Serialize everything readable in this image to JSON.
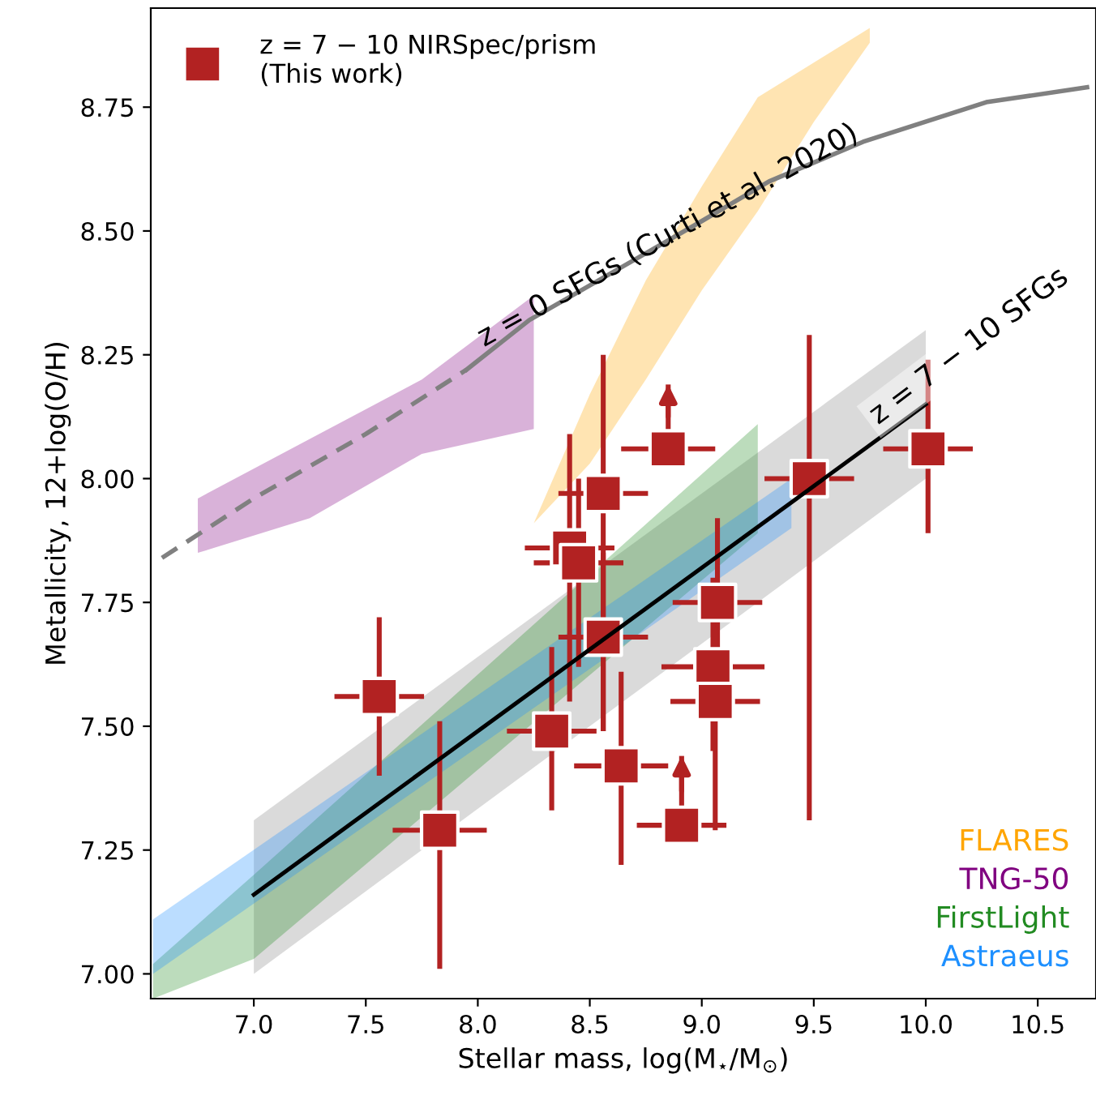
{
  "chart_data": {
    "type": "scatter",
    "xlabel": "Stellar mass, log(M$_{⋆}$/M$_{⊙}$)",
    "ylabel": "Metallicity, 12+log(O/H)",
    "xlim": [
      6.54,
      10.76
    ],
    "ylim": [
      6.95,
      8.95
    ],
    "xticks": [
      {
        "value": 7,
        "label": "7.0"
      },
      {
        "value": 7.5,
        "label": "7.5"
      },
      {
        "value": 8,
        "label": "8.0"
      },
      {
        "value": 8.5,
        "label": "8.5"
      },
      {
        "value": 9,
        "label": "9.0"
      },
      {
        "value": 9.5,
        "label": "9.5"
      },
      {
        "value": 10,
        "label": "10.0"
      },
      {
        "value": 10.5,
        "label": "10.5"
      }
    ],
    "yticks": [
      {
        "value": 7,
        "label": "7.00"
      },
      {
        "value": 7.25,
        "label": "7.25"
      },
      {
        "value": 7.5,
        "label": "7.50"
      },
      {
        "value": 7.75,
        "label": "7.75"
      },
      {
        "value": 8,
        "label": "8.00"
      },
      {
        "value": 8.25,
        "label": "8.25"
      },
      {
        "value": 8.5,
        "label": "8.50"
      },
      {
        "value": 8.75,
        "label": "8.75"
      }
    ],
    "grid": false,
    "legend": "top left",
    "annotations": [
      {
        "text": "z = 0 SFGs (Curti et al. 2020)",
        "x": 8.85,
        "y": 8.49
      }
    ],
    "series": [
      {
        "type": "line",
        "name": "z = 7 − 10 SFGs",
        "color": "#000000",
        "line_style": "solid",
        "x": [
          7.0,
          10.0
        ],
        "values": [
          7.16,
          8.15
        ],
        "lower": [
          7.0,
          8.0
        ],
        "upper": [
          7.31,
          8.3
        ]
      },
      {
        "type": "line",
        "color": "#808080",
        "line_style": "dashed",
        "x": [
          6.59,
          7.0,
          7.5,
          7.95
        ],
        "values": [
          7.84,
          7.96,
          8.09,
          8.22
        ]
      },
      {
        "type": "line",
        "color": "#808080",
        "line_style": "solid",
        "x": [
          7.95,
          8.23,
          8.5,
          9.0,
          9.3,
          9.72,
          10.27,
          10.72
        ],
        "values": [
          8.22,
          8.32,
          8.39,
          8.52,
          8.6,
          8.68,
          8.76,
          8.79
        ]
      },
      {
        "type": "line",
        "name": "FLARES",
        "color": "#ffa500",
        "x": [
          8.25,
          8.5,
          8.75,
          9.0,
          9.25,
          9.5,
          9.75
        ],
        "values": [
          null,
          null,
          null,
          null,
          null,
          null,
          null
        ],
        "lower": [
          7.91,
          8.03,
          8.2,
          8.38,
          8.54,
          8.72,
          8.88
        ],
        "upper": [
          7.91,
          8.17,
          8.4,
          8.59,
          8.77,
          8.84,
          8.91
        ]
      },
      {
        "type": "line",
        "name": "TNG-50",
        "color": "#800080",
        "x": [
          6.75,
          7.25,
          7.75,
          8.25
        ],
        "values": [
          null,
          null,
          null,
          null
        ],
        "lower": [
          7.85,
          7.92,
          8.05,
          8.1
        ],
        "upper": [
          7.96,
          8.08,
          8.2,
          8.37
        ]
      },
      {
        "type": "line",
        "name": "FirstLight",
        "color": "#228b22",
        "x": [
          6.55,
          7.0,
          9.25
        ],
        "values": [
          null,
          null,
          null
        ],
        "lower": [
          6.95,
          7.03,
          7.89
        ],
        "upper": [
          7.02,
          7.2,
          8.11
        ]
      },
      {
        "type": "line",
        "name": "Astraeus",
        "color": "#1e90ff",
        "x": [
          6.55,
          9.4
        ],
        "values": [
          null,
          null
        ],
        "lower": [
          7.0,
          7.9
        ],
        "upper": [
          7.11,
          8.0
        ]
      },
      {
        "name": "z = 7 − 10 NIRSpec/prism\n(This work)",
        "color": "#b22222",
        "marker": "square",
        "x": [
          7.56,
          7.83,
          8.33,
          8.41,
          8.45,
          8.56,
          8.56,
          8.64,
          8.85,
          9.07,
          9.05,
          9.06,
          8.91,
          9.48,
          10.01
        ],
        "values": [
          7.56,
          7.29,
          7.49,
          7.86,
          7.83,
          7.97,
          7.68,
          7.42,
          8.06,
          7.75,
          7.62,
          7.55,
          7.3,
          8.0,
          8.06
        ],
        "errors": [
          [
            7.4,
            7.72
          ],
          [
            7.01,
            7.51
          ],
          [
            7.33,
            7.66
          ],
          [
            7.55,
            8.09
          ],
          [
            7.62,
            8.0
          ],
          [
            7.49,
            8.25
          ],
          [
            7.49,
            7.85
          ],
          [
            7.22,
            7.61
          ],
          [
            8.06,
            8.19
          ],
          [
            7.59,
            7.92
          ],
          [
            7.45,
            7.8
          ],
          [
            7.29,
            7.7
          ],
          [
            7.3,
            7.44
          ],
          [
            7.31,
            8.29
          ],
          [
            7.89,
            8.24
          ]
        ],
        "xerrors": [
          0.2,
          0.21,
          0.2,
          0.2,
          0.2,
          0.2,
          0.2,
          0.21,
          0.21,
          0.2,
          0.23,
          0.2,
          0.2,
          0.2,
          0.2
        ]
      }
    ]
  }
}
